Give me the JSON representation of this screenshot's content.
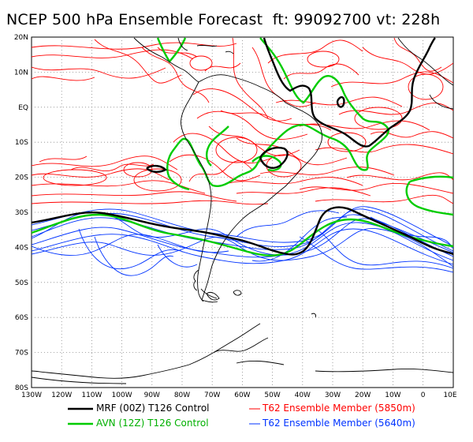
{
  "title": "NCEP 500 hPa Ensemble Forecast  ft: 99092700 vt: 228h",
  "lat_labels": [
    "20N",
    "10N",
    "EQ",
    "10S",
    "20S",
    "30S",
    "40S",
    "50S",
    "60S",
    "70S",
    "80S"
  ],
  "lon_labels": [
    "130W",
    "120W",
    "110W",
    "100W",
    "90W",
    "80W",
    "70W",
    "60W",
    "50W",
    "40W",
    "30W",
    "20W",
    "10W",
    "0",
    "10E"
  ],
  "legend": {
    "mrf": {
      "label": "MRF (00Z) T126 Control",
      "color": "#000000"
    },
    "avn": {
      "label": "AVN (12Z) T126 Control",
      "color": "#00cc00"
    },
    "red": {
      "label": "T62 Ensemble Member (5850m)",
      "color": "#ff0000"
    },
    "blue": {
      "label": "T62 Ensemble Member (5640m)",
      "color": "#0033ff"
    }
  },
  "colors": {
    "coast": "#000000",
    "grid": "#777777",
    "background": "#ffffff"
  }
}
